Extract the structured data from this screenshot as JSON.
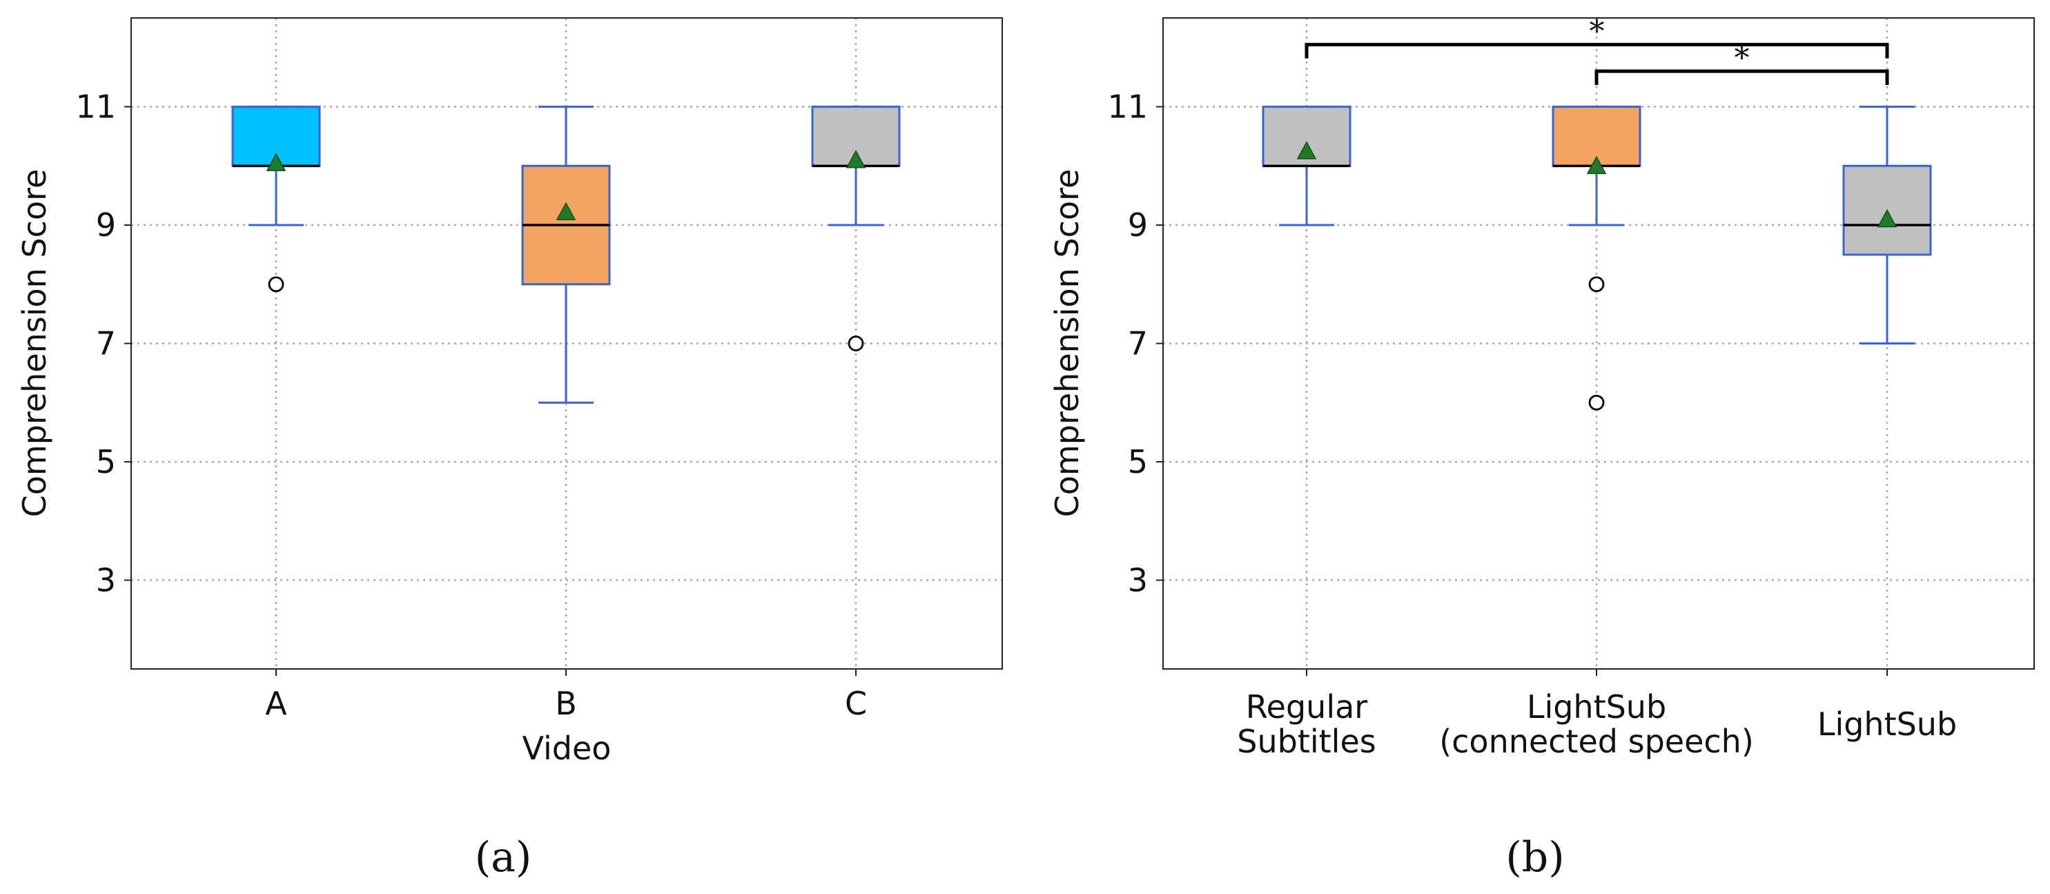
{
  "colors": {
    "whisker": "#3a62d4",
    "box_stroke": "#3a62d4",
    "median": "#000000",
    "mean": "#1f7a2a",
    "grid": "#a8a8a8"
  },
  "chart_data": [
    {
      "type": "box",
      "panel_label": "(a)",
      "xlabel": "Video",
      "ylabel": "Comprehension Score",
      "ylim": [
        1.5,
        12.5
      ],
      "yticks": [
        3,
        5,
        7,
        9,
        11
      ],
      "grid": true,
      "categories": [
        {
          "label": "A",
          "q1": 10,
          "median": 10,
          "q3": 11,
          "whisker_low": 9,
          "whisker_high": 11,
          "mean": 10.05,
          "outliers": [
            8
          ],
          "fill": "#00bfff"
        },
        {
          "label": "B",
          "q1": 8,
          "median": 9,
          "q3": 10,
          "whisker_low": 6,
          "whisker_high": 11,
          "mean": 9.22,
          "outliers": [],
          "fill": "#f4a460"
        },
        {
          "label": "C",
          "q1": 10,
          "median": 10,
          "q3": 11,
          "whisker_low": 9,
          "whisker_high": 11,
          "mean": 10.1,
          "outliers": [
            7
          ],
          "fill": "#c0c0c0"
        }
      ]
    },
    {
      "type": "box",
      "panel_label": "(b)",
      "xlabel": "",
      "ylabel": "Comprehension Score",
      "ylim": [
        1.5,
        12.5
      ],
      "yticks": [
        3,
        5,
        7,
        9,
        11
      ],
      "grid": true,
      "categories": [
        {
          "label_lines": [
            "Regular",
            "Subtitles"
          ],
          "q1": 10,
          "median": 10,
          "q3": 11,
          "whisker_low": 9,
          "whisker_high": 11,
          "mean": 10.25,
          "outliers": [],
          "fill": "#c0c0c0"
        },
        {
          "label_lines": [
            "LightSub",
            "(connected speech)"
          ],
          "q1": 10,
          "median": 10,
          "q3": 11,
          "whisker_low": 9,
          "whisker_high": 11,
          "mean": 10.0,
          "outliers": [
            8,
            6
          ],
          "fill": "#f4a460"
        },
        {
          "label_lines": [
            "LightSub"
          ],
          "q1": 8.5,
          "median": 9,
          "q3": 10,
          "whisker_low": 7,
          "whisker_high": 11,
          "mean": 9.1,
          "outliers": [],
          "fill": "#c0c0c0"
        }
      ],
      "significance": [
        {
          "from": 0,
          "to": 2,
          "label": "*",
          "level": 12.05
        },
        {
          "from": 1,
          "to": 2,
          "label": "*",
          "level": 11.6
        }
      ]
    }
  ]
}
